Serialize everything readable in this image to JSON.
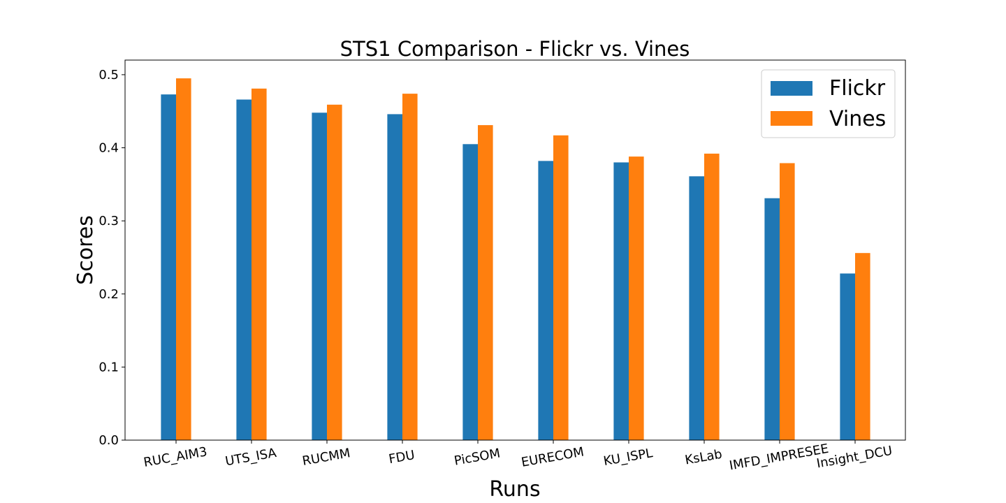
{
  "chart_data": {
    "type": "bar",
    "title": "STS1 Comparison - Flickr vs. Vines",
    "xlabel": "Runs",
    "ylabel": "Scores",
    "ylim": [
      0,
      0.52
    ],
    "yticks": [
      "0.0",
      "0.1",
      "0.2",
      "0.3",
      "0.4",
      "0.5"
    ],
    "categories": [
      "RUC_AIM3",
      "UTS_ISA",
      "RUCMM",
      "FDU",
      "PicSOM",
      "EURECOM",
      "KU_ISPL",
      "KsLab",
      "IMFD_IMPRESEE",
      "Insight_DCU"
    ],
    "series": [
      {
        "name": "Flickr",
        "color": "#1f77b4",
        "values": [
          0.473,
          0.466,
          0.448,
          0.446,
          0.405,
          0.382,
          0.38,
          0.361,
          0.331,
          0.228
        ]
      },
      {
        "name": "Vines",
        "color": "#ff7f0e",
        "values": [
          0.495,
          0.481,
          0.459,
          0.474,
          0.431,
          0.417,
          0.388,
          0.392,
          0.379,
          0.256
        ]
      }
    ],
    "legend_position": "top-right",
    "grid": false
  }
}
